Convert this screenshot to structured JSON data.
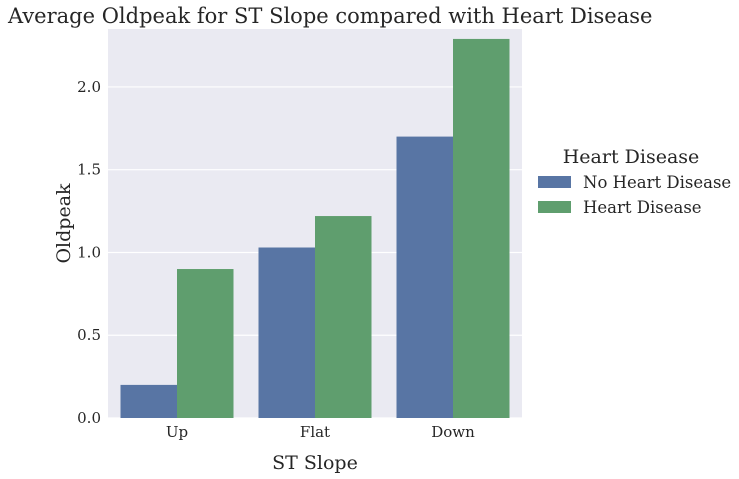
{
  "chart_data": {
    "type": "bar",
    "title": "Average Oldpeak for ST Slope compared with Heart Disease",
    "xlabel": "ST Slope",
    "ylabel": "Oldpeak",
    "categories": [
      "Up",
      "Flat",
      "Down"
    ],
    "series": [
      {
        "name": "No Heart Disease",
        "color": "#5875a4",
        "values": [
          0.2,
          1.03,
          1.7
        ]
      },
      {
        "name": "Heart Disease",
        "color": "#5f9e6e",
        "values": [
          0.9,
          1.22,
          2.29
        ]
      }
    ],
    "ylim": [
      0,
      2.35
    ],
    "yticks": [
      "0.0",
      "0.5",
      "1.0",
      "1.5",
      "2.0"
    ],
    "grid": true,
    "legend": {
      "title": "Heart Disease",
      "position": "right"
    },
    "plot_background": "#eaeaf2",
    "grid_color": "#ffffff"
  }
}
